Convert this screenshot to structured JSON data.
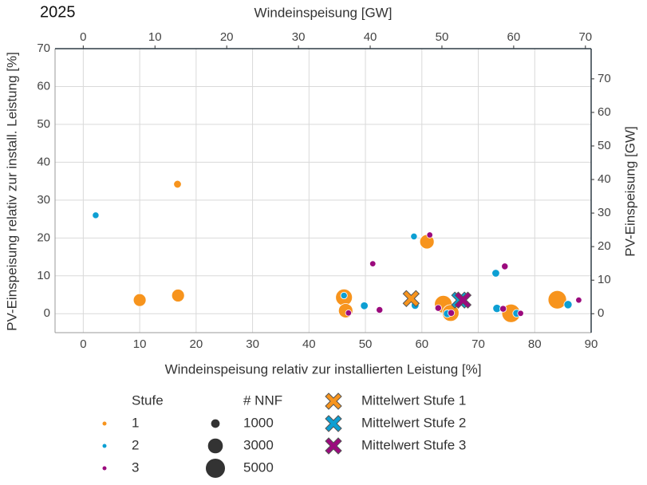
{
  "chart_data": {
    "type": "scatter",
    "title": "2025",
    "x_label": "Windeinspeisung relativ zur installierten Leistung [%]",
    "x2_label": "Windeinspeisung [GW]",
    "y_label": "PV-Einspeisung relativ zur install. Leistung [%]",
    "y2_label": "PV-Einspeisung [GW]",
    "xlim": [
      -5,
      90
    ],
    "xticks": [
      0,
      10,
      20,
      30,
      40,
      50,
      60,
      70,
      80,
      90
    ],
    "x2lim": [
      -3.93,
      70.8
    ],
    "x2ticks": [
      0,
      10,
      20,
      30,
      40,
      50,
      60,
      70
    ],
    "ylim": [
      -5,
      70
    ],
    "yticks": [
      0,
      10,
      20,
      30,
      40,
      50,
      60,
      70
    ],
    "y2lim": [
      -5.64,
      79.0
    ],
    "y2ticks": [
      0,
      10,
      20,
      30,
      40,
      50,
      60,
      70
    ],
    "grid": true,
    "legend_title": "Stufe",
    "series": [
      {
        "name": "1",
        "color": "#f7941d",
        "x": [
          16.7,
          10,
          16.8,
          46.2,
          46.5,
          60.9,
          63.8,
          65.1,
          75.8,
          84
        ],
        "values": [
          34.2,
          3.6,
          4.8,
          4.3,
          0.8,
          19,
          2.5,
          0.2,
          0.1,
          3.7
        ],
        "sizes": [
          800,
          2200,
          2200,
          3800,
          2800,
          2800,
          4200,
          3800,
          4600,
          4600
        ]
      },
      {
        "name": "2",
        "color": "#0d9fd3",
        "x": [
          2.2,
          46.2,
          49.8,
          58.6,
          58.8,
          64.5,
          73.1,
          73.3,
          76.8,
          85.9
        ],
        "values": [
          26,
          4.8,
          2.1,
          20.4,
          2.2,
          0,
          10.7,
          1.4,
          0.1,
          2.4
        ],
        "sizes": [
          600,
          600,
          800,
          600,
          800,
          800,
          800,
          900,
          800,
          900
        ]
      },
      {
        "name": "3",
        "color": "#9b0a7d",
        "x": [
          51.3,
          47,
          52.5,
          61.4,
          62.9,
          65.2,
          74.4,
          74.7,
          77.5,
          87.8
        ],
        "values": [
          13.2,
          0.2,
          1,
          20.8,
          1.5,
          0.2,
          1.3,
          12.5,
          0.1,
          3.6
        ],
        "sizes": [
          500,
          500,
          600,
          500,
          600,
          600,
          600,
          600,
          500,
          500
        ]
      }
    ],
    "size_legend": {
      "title": "# NNF",
      "values": [
        1000,
        3000,
        5000
      ]
    },
    "mean_series": [
      {
        "name": "Mittelwert Stufe 1",
        "color": "#f7941d",
        "x": 58.1,
        "values": 4.0
      },
      {
        "name": "Mittelwert Stufe 2",
        "color": "#0d9fd3",
        "x": 66.7,
        "values": 3.6
      },
      {
        "name": "Mittelwert Stufe 3",
        "color": "#9b0a7d",
        "x": 67.3,
        "values": 3.6
      }
    ]
  }
}
